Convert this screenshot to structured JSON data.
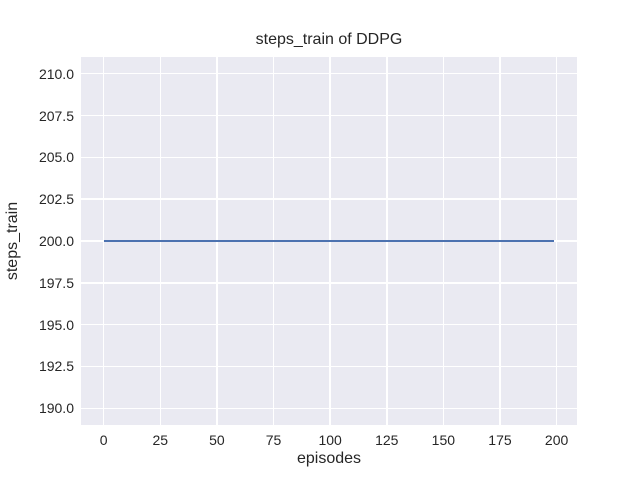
{
  "chart_data": {
    "type": "line",
    "title": "steps_train of DDPG",
    "xlabel": "episodes",
    "ylabel": "steps_train",
    "xlim": [
      -10,
      209
    ],
    "ylim": [
      189,
      211
    ],
    "grid": true,
    "legend": "none",
    "xticks": [
      {
        "value": 0,
        "label": "0"
      },
      {
        "value": 25,
        "label": "25"
      },
      {
        "value": 50,
        "label": "50"
      },
      {
        "value": 75,
        "label": "75"
      },
      {
        "value": 100,
        "label": "100"
      },
      {
        "value": 125,
        "label": "125"
      },
      {
        "value": 150,
        "label": "150"
      },
      {
        "value": 175,
        "label": "175"
      },
      {
        "value": 200,
        "label": "200"
      }
    ],
    "yticks": [
      {
        "value": 190.0,
        "label": "190.0"
      },
      {
        "value": 192.5,
        "label": "192.5"
      },
      {
        "value": 195.0,
        "label": "195.0"
      },
      {
        "value": 197.5,
        "label": "197.5"
      },
      {
        "value": 200.0,
        "label": "200.0"
      },
      {
        "value": 202.5,
        "label": "202.5"
      },
      {
        "value": 205.0,
        "label": "205.0"
      },
      {
        "value": 207.5,
        "label": "207.5"
      },
      {
        "value": 210.0,
        "label": "210.0"
      }
    ],
    "series": [
      {
        "name": "steps_train",
        "color": "#4c72b0",
        "x": [
          0,
          199
        ],
        "y": [
          200,
          200
        ]
      }
    ],
    "colors": {
      "figure_bg": "#ffffff",
      "axes_bg": "#eaeaf2",
      "grid": "#ffffff",
      "text": "#262626",
      "line": "#4c72b0"
    }
  }
}
